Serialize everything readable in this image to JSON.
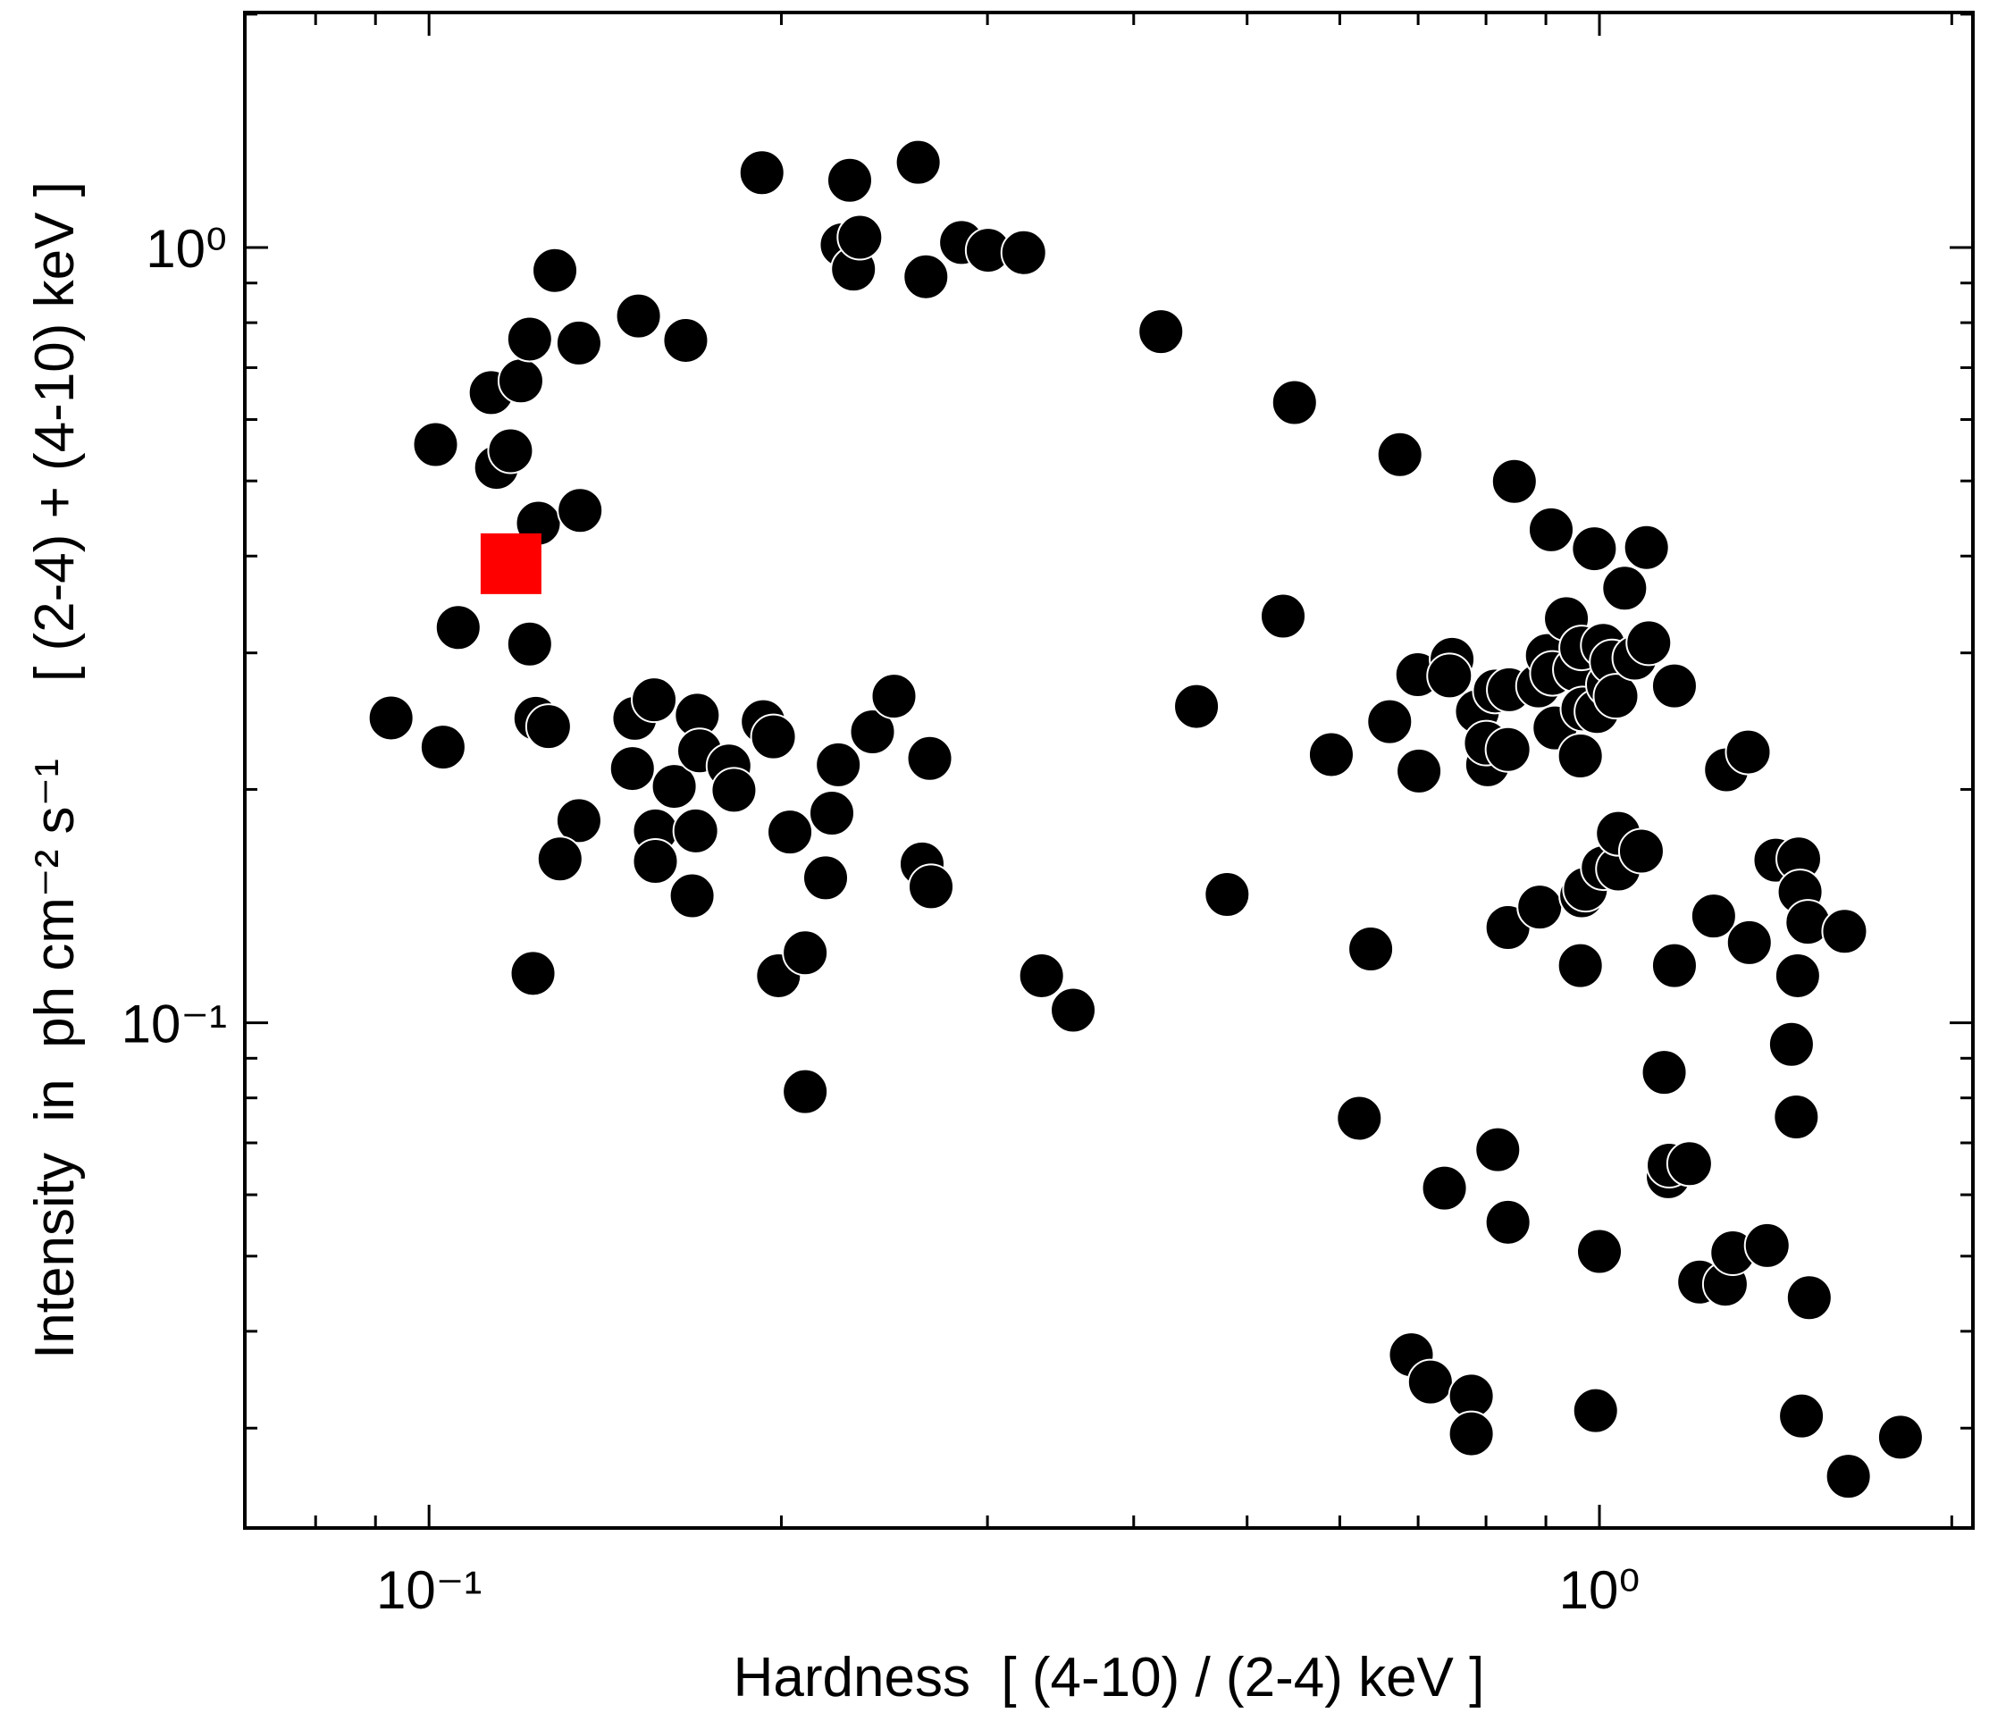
{
  "chart_data": {
    "type": "scatter",
    "xlabel": "Hardness  [ (4-10) / (2-4) keV ]",
    "ylabel": "Intensity  in  ph cm⁻² s⁻¹     [ (2-4) + (4-10) keV ]",
    "xscale": "log",
    "yscale": "log",
    "xlim": [
      0.0696,
      2.085
    ],
    "ylim": [
      0.0223,
      2.01
    ],
    "xticks": [
      {
        "value": 0.1,
        "label": "10⁻¹"
      },
      {
        "value": 1,
        "label": "10⁰"
      }
    ],
    "yticks": [
      {
        "value": 0.1,
        "label": "10⁻¹"
      },
      {
        "value": 1,
        "label": "10⁰"
      }
    ],
    "xminorticks": [
      0.08,
      0.09,
      0.2,
      0.3,
      0.4,
      0.5,
      0.6,
      0.7,
      0.8,
      0.9,
      2
    ],
    "yminorticks": [
      0.03,
      0.04,
      0.05,
      0.06,
      0.07,
      0.08,
      0.09,
      0.2,
      0.3,
      0.4,
      0.5,
      0.6,
      0.7,
      0.8,
      0.9,
      2
    ],
    "series": [
      {
        "color": "#000000",
        "marker": "circle",
        "x": [
          0.0928,
          0.1028,
          0.1013,
          0.1059,
          0.113,
          0.1142,
          0.1174,
          0.1198,
          0.1219,
          0.1219,
          0.1234,
          0.1265,
          0.124,
          0.1281,
          0.1343,
          0.1346,
          0.1343,
          0.1294,
          0.1227,
          0.151,
          0.1657,
          0.1499,
          0.1557,
          0.1492,
          0.162,
          0.1561,
          0.1561,
          0.1695,
          0.1703,
          0.169,
          0.1678,
          0.1804,
          0.1822,
          0.1925,
          0.193,
          0.1969,
          0.2034,
          0.1989,
          0.2096,
          0.2096,
          0.2182,
          0.2209,
          0.2237,
          0.2288,
          0.2254,
          0.2305,
          0.2334,
          0.2393,
          0.2496,
          0.2618,
          0.2658,
          0.2851,
          0.3004,
          0.3222,
          0.2638,
          0.2685,
          0.2678,
          0.3337,
          0.3551,
          0.422,
          0.4526,
          0.4807,
          0.5367,
          0.5489,
          0.5901,
          0.6235,
          0.6377,
          0.6619,
          0.6753,
          0.6995,
          0.7012,
          0.7483,
          0.7446,
          0.7372,
          0.6907,
          0.7171,
          0.7772,
          0.7772,
          0.7866,
          0.8147,
          0.8025,
          0.8005,
          0.8353,
          0.8374,
          0.8188,
          0.8353,
          0.8353,
          0.8459,
          0.8892,
          0.9094,
          0.8869,
          0.9026,
          0.9117,
          0.9163,
          0.9371,
          0.9537,
          0.9656,
          0.9632,
          0.968,
          0.9632,
          0.9656,
          0.9729,
          0.995,
          0.9901,
          1.0,
          0.9925,
          1.0075,
          1.0075,
          1.0177,
          1.0253,
          1.033,
          1.038,
          1.038,
          1.051,
          1.072,
          1.086,
          1.097,
          1.102,
          1.159,
          1.159,
          1.136,
          1.145,
          1.147,
          1.194,
          1.218,
          1.252,
          1.281,
          1.284,
          1.3,
          1.34,
          1.343,
          1.391,
          1.415,
          1.48,
          1.484,
          1.477,
          1.459,
          1.473,
          1.507,
          1.488,
          1.511,
          1.62,
          1.632,
          1.808
        ],
        "values": [
          0.2473,
          0.2268,
          0.557,
          0.3235,
          0.65,
          0.5205,
          0.5468,
          0.673,
          0.762,
          0.308,
          0.247,
          0.241,
          0.441,
          0.934,
          0.753,
          0.458,
          0.1823,
          0.1627,
          0.1158,
          0.816,
          0.759,
          0.247,
          0.261,
          0.2128,
          0.2018,
          0.1768,
          0.1615,
          0.2493,
          0.2243,
          0.1768,
          0.1458,
          0.2144,
          0.1995,
          1.249,
          0.2446,
          0.2338,
          0.1762,
          0.115,
          0.1231,
          0.0815,
          0.1538,
          0.1864,
          0.2152,
          1.221,
          1.008,
          0.938,
          1.031,
          0.2373,
          0.2638,
          1.288,
          0.917,
          1.015,
          0.992,
          0.985,
          0.1603,
          0.1498,
          0.2193,
          0.115,
          0.1038,
          0.779,
          0.2559,
          0.1464,
          0.3346,
          0.631,
          0.2218,
          0.0753,
          0.1245,
          0.2446,
          0.5406,
          0.2812,
          0.2112,
          0.2943,
          0.2802,
          0.0612,
          0.0373,
          0.0344,
          0.033,
          0.0295,
          0.2521,
          0.2679,
          0.2152,
          0.2295,
          0.2252,
          0.2689,
          0.0686,
          0.0553,
          0.1327,
          0.4993,
          0.141,
          0.4325,
          0.272,
          0.2977,
          0.2823,
          0.2401,
          0.3321,
          0.2855,
          0.3045,
          0.2209,
          0.254,
          0.1185,
          0.1458,
          0.1487,
          0.2521,
          0.4088,
          0.0507,
          0.0316,
          0.3068,
          0.1585,
          0.273,
          0.2921,
          0.2638,
          0.1579,
          0.1755,
          0.3636,
          0.2954,
          0.1665,
          0.4103,
          0.3091,
          0.272,
          0.1185,
          0.0863,
          0.0633,
          0.0655,
          0.0658,
          0.0463,
          0.1373,
          0.046,
          0.212,
          0.0505,
          0.2235,
          0.1269,
          0.0516,
          0.1621,
          0.1627,
          0.1475,
          0.115,
          0.0938,
          0.0756,
          0.1348,
          0.0311,
          0.0442,
          0.1312,
          0.026,
          0.0292
        ]
      },
      {
        "color": "#ff0000",
        "marker": "square",
        "x": [
          0.1175
        ],
        "values": [
          0.391
        ]
      }
    ]
  }
}
